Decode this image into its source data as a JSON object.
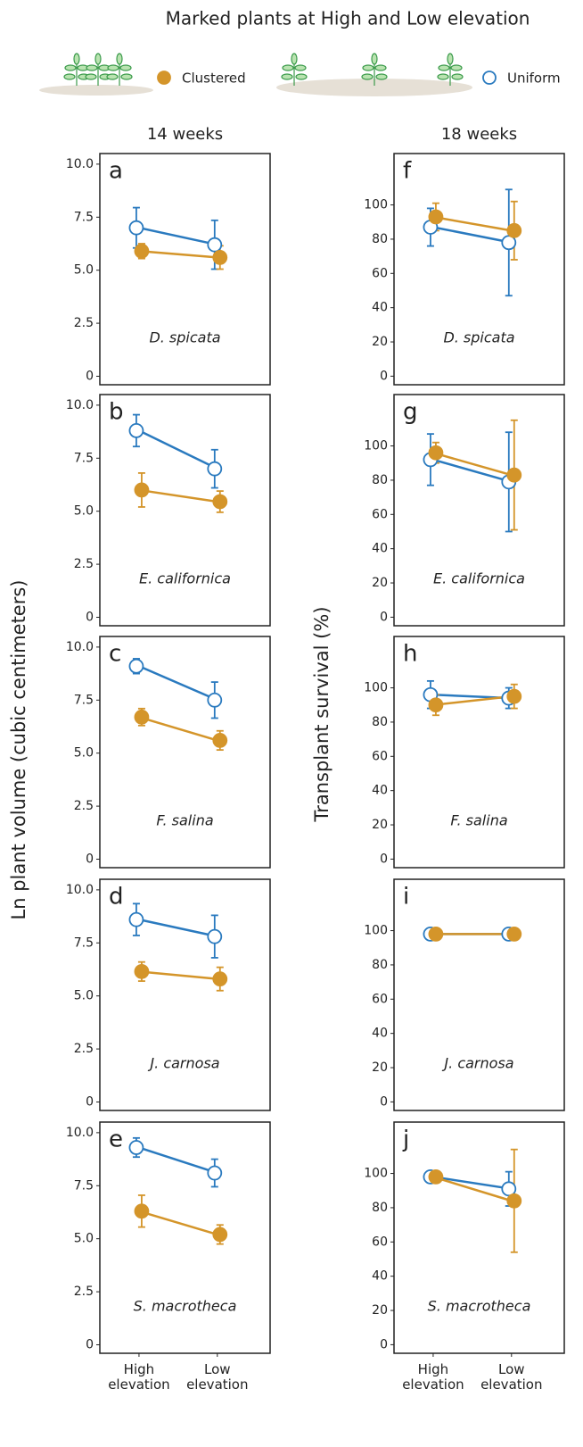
{
  "title": "Marked plants at High and Low elevation",
  "legend": [
    {
      "name": "Clustered",
      "color": "#d4952a",
      "filled": true
    },
    {
      "name": "Uniform",
      "color": "#2a7abf",
      "filled": false
    }
  ],
  "columns": [
    {
      "title": "14 weeks",
      "ylabel": "Ln plant volume (cubic centimeters)"
    },
    {
      "title": "18 weeks",
      "ylabel": "Transplant survival (%)"
    }
  ],
  "chart_data": [
    {
      "type": "line",
      "label": "a",
      "annotation": "D. spicata",
      "categories": [
        "High elevation",
        "Low elevation"
      ],
      "ylim": [
        -0.4,
        10.5
      ],
      "yticks": [
        0,
        2.5,
        {
          "value": 5,
          "label": "5.0"
        },
        7.5,
        {
          "value": 10,
          "label": "10.0"
        }
      ],
      "series": [
        {
          "color": "#2a7abf",
          "filled": false,
          "values": [
            7.0,
            6.2
          ],
          "errors": [
            0.95,
            1.15
          ]
        },
        {
          "color": "#d4952a",
          "filled": true,
          "values": [
            5.9,
            5.6
          ],
          "errors": [
            0.35,
            0.55
          ]
        }
      ]
    },
    {
      "type": "line",
      "label": "b",
      "annotation": "E. californica",
      "categories": [
        "High elevation",
        "Low elevation"
      ],
      "ylim": [
        -0.4,
        10.5
      ],
      "yticks": [
        0,
        2.5,
        {
          "value": 5,
          "label": "5.0"
        },
        7.5,
        {
          "value": 10,
          "label": "10.0"
        }
      ],
      "series": [
        {
          "color": "#2a7abf",
          "filled": false,
          "values": [
            8.8,
            7.0
          ],
          "errors": [
            0.75,
            0.9
          ]
        },
        {
          "color": "#d4952a",
          "filled": true,
          "values": [
            6.0,
            5.45
          ],
          "errors": [
            0.8,
            0.5
          ]
        }
      ]
    },
    {
      "type": "line",
      "label": "c",
      "annotation": "F. salina",
      "categories": [
        "High elevation",
        "Low elevation"
      ],
      "ylim": [
        -0.4,
        10.5
      ],
      "yticks": [
        0,
        2.5,
        {
          "value": 5,
          "label": "5.0"
        },
        7.5,
        {
          "value": 10,
          "label": "10.0"
        }
      ],
      "series": [
        {
          "color": "#2a7abf",
          "filled": false,
          "values": [
            9.1,
            7.5
          ],
          "errors": [
            0.35,
            0.85
          ]
        },
        {
          "color": "#d4952a",
          "filled": true,
          "values": [
            6.7,
            5.6
          ],
          "errors": [
            0.4,
            0.45
          ]
        }
      ]
    },
    {
      "type": "line",
      "label": "d",
      "annotation": "J. carnosa",
      "categories": [
        "High elevation",
        "Low elevation"
      ],
      "ylim": [
        -0.4,
        10.5
      ],
      "yticks": [
        0,
        2.5,
        {
          "value": 5,
          "label": "5.0"
        },
        7.5,
        {
          "value": 10,
          "label": "10.0"
        }
      ],
      "series": [
        {
          "color": "#2a7abf",
          "filled": false,
          "values": [
            8.6,
            7.8
          ],
          "errors": [
            0.75,
            1.0
          ]
        },
        {
          "color": "#d4952a",
          "filled": true,
          "values": [
            6.15,
            5.8
          ],
          "errors": [
            0.45,
            0.55
          ]
        }
      ]
    },
    {
      "type": "line",
      "label": "e",
      "annotation": "S. macrotheca",
      "categories": [
        "High elevation",
        "Low elevation"
      ],
      "ylim": [
        -0.4,
        10.5
      ],
      "yticks": [
        0,
        2.5,
        {
          "value": 5,
          "label": "5.0"
        },
        7.5,
        {
          "value": 10,
          "label": "10.0"
        }
      ],
      "series": [
        {
          "color": "#2a7abf",
          "filled": false,
          "values": [
            9.3,
            8.1
          ],
          "errors": [
            0.45,
            0.65
          ]
        },
        {
          "color": "#d4952a",
          "filled": true,
          "values": [
            6.3,
            5.2
          ],
          "errors": [
            0.75,
            0.45
          ]
        }
      ]
    },
    {
      "type": "line",
      "label": "f",
      "annotation": "D. spicata",
      "categories": [
        "High elevation",
        "Low elevation"
      ],
      "ylim": [
        -5,
        130
      ],
      "yticks": [
        0,
        20,
        40,
        60,
        80,
        100
      ],
      "series": [
        {
          "color": "#2a7abf",
          "filled": false,
          "values": [
            87,
            78
          ],
          "errors": [
            11,
            31
          ]
        },
        {
          "color": "#d4952a",
          "filled": true,
          "values": [
            93,
            85
          ],
          "errors": [
            8,
            17
          ]
        }
      ]
    },
    {
      "type": "line",
      "label": "g",
      "annotation": "E. californica",
      "categories": [
        "High elevation",
        "Low elevation"
      ],
      "ylim": [
        -5,
        130
      ],
      "yticks": [
        0,
        20,
        40,
        60,
        80,
        100
      ],
      "series": [
        {
          "color": "#2a7abf",
          "filled": false,
          "values": [
            92,
            79
          ],
          "errors": [
            15,
            29
          ]
        },
        {
          "color": "#d4952a",
          "filled": true,
          "values": [
            96,
            83
          ],
          "errors": [
            6,
            32
          ]
        }
      ]
    },
    {
      "type": "line",
      "label": "h",
      "annotation": "F. salina",
      "categories": [
        "High elevation",
        "Low elevation"
      ],
      "ylim": [
        -5,
        130
      ],
      "yticks": [
        0,
        20,
        40,
        60,
        80,
        100
      ],
      "series": [
        {
          "color": "#2a7abf",
          "filled": false,
          "values": [
            96,
            94
          ],
          "errors": [
            8,
            6
          ]
        },
        {
          "color": "#d4952a",
          "filled": true,
          "values": [
            90,
            95
          ],
          "errors": [
            6,
            7
          ]
        }
      ]
    },
    {
      "type": "line",
      "label": "i",
      "annotation": "J. carnosa",
      "categories": [
        "High elevation",
        "Low elevation"
      ],
      "ylim": [
        -5,
        130
      ],
      "yticks": [
        0,
        20,
        40,
        60,
        80,
        100
      ],
      "series": [
        {
          "color": "#2a7abf",
          "filled": false,
          "values": [
            98,
            98
          ],
          "errors": [
            0,
            0
          ]
        },
        {
          "color": "#d4952a",
          "filled": true,
          "values": [
            98,
            98
          ],
          "errors": [
            0,
            0
          ]
        }
      ]
    },
    {
      "type": "line",
      "label": "j",
      "annotation": "S. macrotheca",
      "categories": [
        "High elevation",
        "Low elevation"
      ],
      "ylim": [
        -5,
        130
      ],
      "yticks": [
        0,
        20,
        40,
        60,
        80,
        100
      ],
      "series": [
        {
          "color": "#2a7abf",
          "filled": false,
          "values": [
            98,
            91
          ],
          "errors": [
            0,
            10
          ]
        },
        {
          "color": "#d4952a",
          "filled": true,
          "values": [
            98,
            84
          ],
          "errors": [
            0,
            30
          ]
        }
      ]
    }
  ]
}
